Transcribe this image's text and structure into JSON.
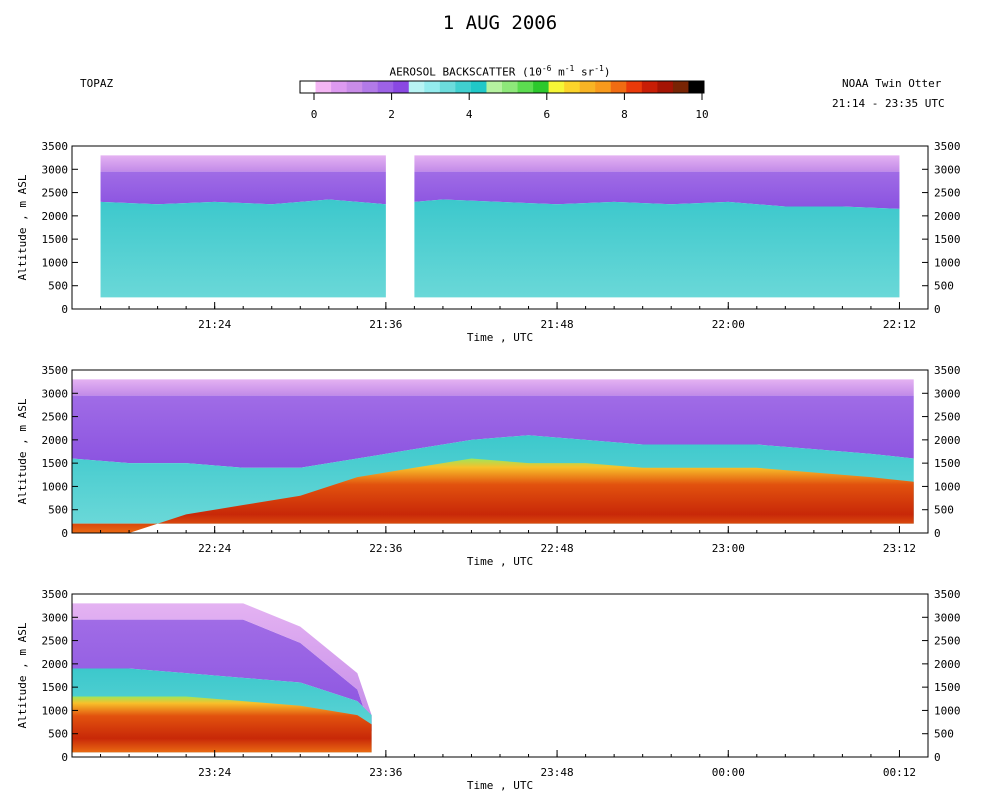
{
  "header": {
    "title": "1 AUG 2006",
    "instrument": "TOPAZ",
    "platform": "NOAA Twin Otter",
    "time_range": "21:14 - 23:35 UTC"
  },
  "colorbar": {
    "title_main": "AEROSOL BACKSCATTER (10",
    "title_exp1": "-6",
    "title_mid": " m",
    "title_exp2": "-1",
    "title_mid2": " sr",
    "title_exp3": "-1",
    "title_end": ")",
    "range": [
      0,
      10
    ],
    "tick_labels": [
      "0",
      "2",
      "4",
      "6",
      "8",
      "10"
    ],
    "colors": [
      "#ffffff",
      "#f4b6f4",
      "#dd9af0",
      "#c98ce8",
      "#b27ae8",
      "#9d62e6",
      "#8a48e2",
      "#b8f4f4",
      "#94ecee",
      "#6cdcdc",
      "#40d0d0",
      "#20c8c8",
      "#b6f2a0",
      "#8ee87a",
      "#5cdc50",
      "#2cc82c",
      "#f6f636",
      "#fcd42a",
      "#f8b424",
      "#f89a1c",
      "#f06c12",
      "#ea3a0a",
      "#c81e06",
      "#a41404",
      "#782404",
      "#000000"
    ]
  },
  "colors": {
    "haze": "#d79ef0",
    "free_troposphere": "#9c64e6",
    "boundary_layer": "#50d4d4",
    "high_aerosol": "#d82c08"
  },
  "panels": [
    {
      "xticks": [
        "21:24",
        "21:36",
        "21:48",
        "22:00",
        "22:12"
      ],
      "xlabel": "Time , UTC",
      "ylabel": "Altitude , m ASL"
    },
    {
      "xticks": [
        "22:24",
        "22:36",
        "22:48",
        "23:00",
        "23:12"
      ],
      "xlabel": "Time , UTC",
      "ylabel": "Altitude , m ASL"
    },
    {
      "xticks": [
        "23:24",
        "23:36",
        "23:48",
        "00:00",
        "00:12"
      ],
      "xlabel": "Time , UTC",
      "ylabel": "Altitude , m ASL"
    }
  ],
  "chart_data": {
    "type": "heatmap",
    "title": "1 AUG 2006",
    "xlabel": "Time , UTC",
    "ylabel": "Altitude , m ASL",
    "ylim": [
      0,
      3500
    ],
    "yticks": [
      0,
      500,
      1000,
      1500,
      2000,
      2500,
      3000,
      3500
    ],
    "colorbar_label": "AEROSOL BACKSCATTER (10^-6 m^-1 sr^-1)",
    "colorbar_range": [
      0,
      10
    ],
    "grid": false,
    "panels": [
      {
        "xlim": [
          "21:14",
          "22:14"
        ],
        "xticks": [
          "21:24",
          "21:36",
          "21:48",
          "22:00",
          "22:12"
        ],
        "profile": {
          "x": [
            "21:16",
            "21:20",
            "21:24",
            "21:28",
            "21:32",
            "21:36",
            "21:40",
            "21:44",
            "21:48",
            "21:52",
            "21:56",
            "22:00",
            "22:04",
            "22:08",
            "22:12"
          ],
          "bottom": [
            250,
            250,
            250,
            250,
            250,
            250,
            250,
            250,
            250,
            250,
            250,
            250,
            250,
            250,
            250
          ],
          "layer_top": [
            2300,
            2250,
            2300,
            2250,
            2350,
            2250,
            2350,
            2300,
            2250,
            2300,
            2250,
            2300,
            2200,
            2200,
            2150
          ],
          "top": [
            3300,
            3300,
            3300,
            3300,
            3300,
            3300,
            3300,
            3300,
            3300,
            3300,
            3300,
            3300,
            3300,
            3300,
            3300
          ],
          "mean_backscatter": [
            3,
            3,
            3,
            3,
            3,
            3,
            3,
            3,
            3,
            3.5,
            3,
            3,
            2.5,
            2.5,
            2.5
          ],
          "data_gap": [
            "21:36",
            "21:38"
          ]
        }
      },
      {
        "xlim": [
          "22:14",
          "23:14"
        ],
        "xticks": [
          "22:24",
          "22:36",
          "22:48",
          "23:00",
          "23:12"
        ],
        "profile": {
          "x": [
            "22:14",
            "22:18",
            "22:22",
            "22:26",
            "22:30",
            "22:34",
            "22:38",
            "22:42",
            "22:46",
            "22:50",
            "22:54",
            "22:58",
            "23:02",
            "23:06",
            "23:10",
            "23:13"
          ],
          "bottom": [
            200,
            200,
            200,
            200,
            200,
            200,
            200,
            200,
            200,
            200,
            200,
            200,
            200,
            200,
            200,
            200
          ],
          "layer_top": [
            1600,
            1500,
            1500,
            1400,
            1400,
            1600,
            1800,
            2000,
            2100,
            2000,
            1900,
            1900,
            1900,
            1800,
            1700,
            1600
          ],
          "polluted_top": [
            0,
            0,
            400,
            600,
            800,
            1200,
            1400,
            1600,
            1500,
            1500,
            1400,
            1400,
            1400,
            1300,
            1200,
            1100
          ],
          "top": [
            3300,
            3300,
            3300,
            3300,
            3300,
            3300,
            3300,
            3300,
            3300,
            3300,
            3300,
            3300,
            3300,
            3300,
            3300,
            3300
          ],
          "mean_backscatter": [
            3,
            3,
            3.5,
            4,
            5,
            6.5,
            8,
            8.5,
            8.5,
            8,
            8,
            8,
            8,
            7.5,
            7,
            6.5
          ]
        }
      },
      {
        "xlim": [
          "23:14",
          "00:14"
        ],
        "xticks": [
          "23:24",
          "23:36",
          "23:48",
          "00:00",
          "00:12"
        ],
        "profile": {
          "x": [
            "23:14",
            "23:18",
            "23:22",
            "23:26",
            "23:30",
            "23:34",
            "23:35"
          ],
          "bottom": [
            100,
            100,
            100,
            100,
            100,
            100,
            100
          ],
          "layer_top": [
            1900,
            1900,
            1800,
            1700,
            1600,
            1200,
            900
          ],
          "polluted_top": [
            1300,
            1300,
            1300,
            1200,
            1100,
            900,
            700
          ],
          "top": [
            3300,
            3300,
            3300,
            3300,
            2800,
            1800,
            900
          ],
          "mean_backscatter": [
            8,
            8.5,
            8.5,
            8,
            8,
            8,
            7.5
          ],
          "data_end": "23:35"
        }
      }
    ]
  }
}
